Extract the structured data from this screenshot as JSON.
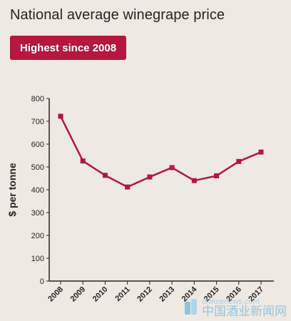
{
  "colors": {
    "background": "#efe9e4",
    "accent": "#b5173f",
    "text": "#2a2321",
    "axis": "#2a2321",
    "watermark": "#4aa7d6"
  },
  "header": {
    "title": "National average winegrape price",
    "badge": "Highest since 2008"
  },
  "watermark": {
    "url": "oiwinenews.com",
    "name": "中国酒业新闻网"
  },
  "chart_data": {
    "type": "line",
    "title": "",
    "xlabel": "",
    "ylabel": "$ per tonne",
    "ylim": [
      0,
      800
    ],
    "yticks": [
      0,
      100,
      200,
      300,
      400,
      500,
      600,
      700,
      800
    ],
    "grid": false,
    "legend": "none",
    "categories": [
      "2008",
      "2009",
      "2010",
      "2011",
      "2012",
      "2013",
      "2014",
      "2015",
      "2016",
      "2017"
    ],
    "series": [
      {
        "values": [
          722,
          526,
          463,
          412,
          456,
          497,
          440,
          461,
          524,
          565
        ]
      }
    ]
  }
}
